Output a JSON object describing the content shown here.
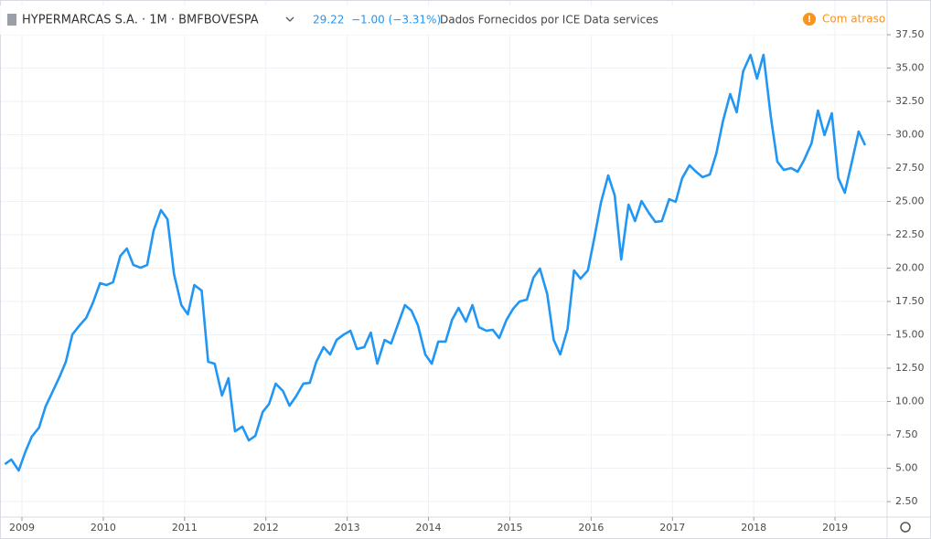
{
  "chart_data": {
    "type": "line",
    "title": "HYPERMARCAS S.A. · 1M · BMFBOVESPA",
    "last_price": "29.22",
    "change": "−1.00 (−3.31%)",
    "source": "Dados Fornecidos por ICE Data services",
    "status": "Com atraso",
    "x": [
      2008.79,
      2008.87,
      2008.96,
      2009.04,
      2009.12,
      2009.21,
      2009.29,
      2009.37,
      2009.46,
      2009.54,
      2009.62,
      2009.71,
      2009.79,
      2009.87,
      2009.96,
      2010.04,
      2010.12,
      2010.21,
      2010.29,
      2010.37,
      2010.46,
      2010.54,
      2010.62,
      2010.71,
      2010.79,
      2010.87,
      2010.96,
      2011.04,
      2011.12,
      2011.21,
      2011.29,
      2011.37,
      2011.46,
      2011.54,
      2011.62,
      2011.71,
      2011.79,
      2011.87,
      2011.96,
      2012.04,
      2012.12,
      2012.21,
      2012.29,
      2012.37,
      2012.46,
      2012.54,
      2012.62,
      2012.71,
      2012.79,
      2012.87,
      2012.96,
      2013.04,
      2013.12,
      2013.21,
      2013.29,
      2013.37,
      2013.46,
      2013.54,
      2013.62,
      2013.71,
      2013.79,
      2013.87,
      2013.96,
      2014.04,
      2014.12,
      2014.21,
      2014.29,
      2014.37,
      2014.46,
      2014.54,
      2014.62,
      2014.71,
      2014.79,
      2014.87,
      2014.96,
      2015.04,
      2015.12,
      2015.21,
      2015.29,
      2015.37,
      2015.46,
      2015.54,
      2015.62,
      2015.71,
      2015.79,
      2015.87,
      2015.96,
      2016.04,
      2016.12,
      2016.21,
      2016.29,
      2016.37,
      2016.46,
      2016.54,
      2016.62,
      2016.71,
      2016.79,
      2016.87,
      2016.96,
      2017.04,
      2017.12,
      2017.21,
      2017.29,
      2017.37,
      2017.46,
      2017.54,
      2017.62,
      2017.71,
      2017.79,
      2017.87,
      2017.96,
      2018.04,
      2018.12,
      2018.21,
      2018.29,
      2018.37,
      2018.46,
      2018.54,
      2018.62,
      2018.71,
      2018.79,
      2018.87,
      2018.96,
      2019.04,
      2019.12,
      2019.21,
      2019.29,
      2019.37
    ],
    "series": [
      {
        "name": "HYPERMARCAS S.A.",
        "color": "#2196f3",
        "values": [
          5.31,
          5.65,
          4.83,
          6.2,
          7.36,
          8.05,
          9.62,
          10.65,
          11.82,
          12.98,
          15.03,
          15.72,
          16.27,
          17.36,
          18.87,
          18.73,
          18.94,
          20.92,
          21.47,
          20.24,
          20.03,
          20.24,
          22.84,
          24.35,
          23.66,
          19.55,
          17.23,
          16.54,
          18.73,
          18.32,
          12.98,
          12.84,
          10.45,
          11.75,
          7.77,
          8.12,
          7.09,
          7.43,
          9.21,
          9.83,
          11.34,
          10.79,
          9.69,
          10.38,
          11.34,
          11.4,
          12.98,
          14.08,
          13.53,
          14.62,
          15.03,
          15.31,
          13.94,
          14.08,
          15.17,
          12.84,
          14.62,
          14.35,
          15.72,
          17.23,
          16.82,
          15.72,
          13.53,
          12.84,
          14.49,
          14.49,
          16.13,
          17.02,
          15.99,
          17.23,
          15.58,
          15.31,
          15.38,
          14.76,
          16.13,
          16.95,
          17.5,
          17.64,
          19.28,
          19.97,
          18.05,
          14.62,
          13.53,
          15.45,
          19.83,
          19.21,
          19.83,
          22.29,
          24.9,
          26.95,
          25.45,
          20.65,
          24.76,
          23.53,
          25.03,
          24.14,
          23.46,
          23.53,
          25.17,
          24.97,
          26.75,
          27.71,
          27.23,
          26.82,
          27.02,
          28.6,
          30.99,
          33.05,
          31.68,
          34.76,
          35.99,
          34.21,
          35.99,
          31.34,
          27.98,
          27.36,
          27.5,
          27.23,
          28.12,
          29.35,
          31.82,
          29.97,
          31.61,
          26.75,
          25.65,
          28.05,
          30.24,
          29.22
        ]
      }
    ],
    "xlim": [
      2008.73,
      2019.64
    ],
    "xticks": [
      2009,
      2010,
      2011,
      2012,
      2013,
      2014,
      2015,
      2016,
      2017,
      2018,
      2019
    ],
    "ylim": [
      1.34,
      40.1
    ],
    "yticks": [
      {
        "value": 2.5,
        "label": "2.50"
      },
      {
        "value": 5,
        "label": "5.00"
      },
      {
        "value": 7.5,
        "label": "7.50"
      },
      {
        "value": 10,
        "label": "10.00"
      },
      {
        "value": 12.5,
        "label": "12.50"
      },
      {
        "value": 15,
        "label": "15.00"
      },
      {
        "value": 17.5,
        "label": "17.50"
      },
      {
        "value": 20,
        "label": "20.00"
      },
      {
        "value": 22.5,
        "label": "22.50"
      },
      {
        "value": 25,
        "label": "25.00"
      },
      {
        "value": 27.5,
        "label": "27.50"
      },
      {
        "value": 30,
        "label": "30.00"
      },
      {
        "value": 32.5,
        "label": "32.50"
      },
      {
        "value": 35,
        "label": "35.00"
      },
      {
        "value": 37.5,
        "label": "37.50"
      }
    ],
    "grid": true
  }
}
